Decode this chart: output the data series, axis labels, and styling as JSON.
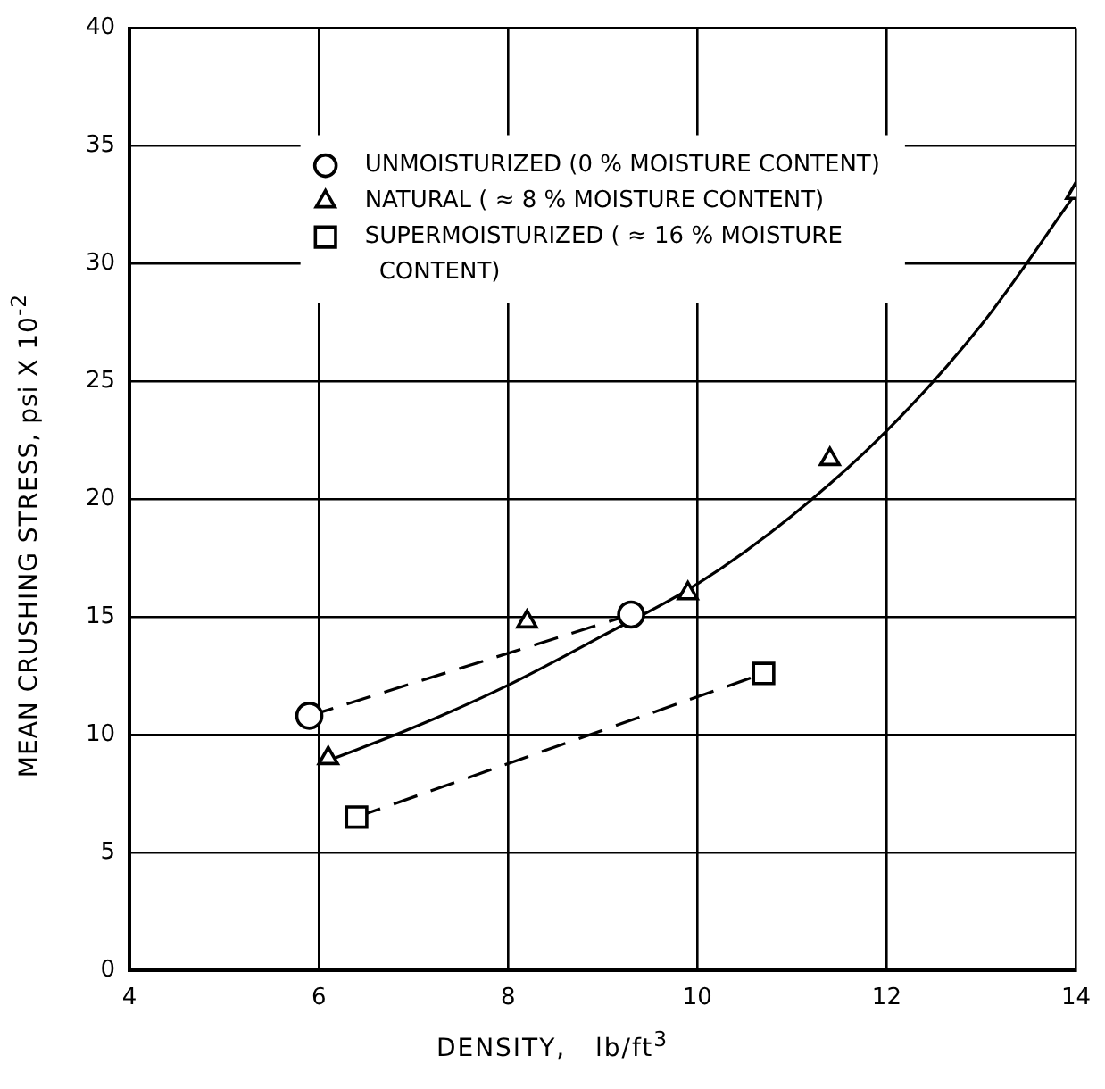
{
  "chart_data": {
    "type": "scatter",
    "xlabel": "DENSITY,   lb/ft$^{3}$",
    "ylabel": "MEAN CRUSHING STRESS, psi X 10$^{-2}$",
    "xlim": [
      4,
      14
    ],
    "xticks": [
      4,
      6,
      8,
      10,
      12,
      14
    ],
    "ylim": [
      0,
      40
    ],
    "yticks": [
      0,
      5,
      10,
      15,
      20,
      25,
      30,
      35,
      40
    ],
    "grid": true,
    "legend": "top",
    "series": [
      {
        "name": "UNMOISTURIZED (0 % MOISTURE CONTENT)",
        "type": "line",
        "color": "#000000",
        "marker": "circle",
        "line_style": "dashed",
        "x": [
          5.9,
          9.3
        ],
        "values": [
          10.8,
          15.1
        ]
      },
      {
        "name": "NATURAL ( ≈ 8 % MOISTURE CONTENT)",
        "type": "scatter",
        "color": "#000000",
        "marker": "triangle",
        "x": [
          6.1,
          8.2,
          9.9,
          11.4,
          14.0
        ],
        "values": [
          9.0,
          14.8,
          16.0,
          21.7,
          33.0
        ]
      },
      {
        "name": "SUPERMOISTURIZED ( ≈ 16 % MOISTURE CONTENT)",
        "type": "line",
        "color": "#000000",
        "marker": "square",
        "line_style": "dashed",
        "x": [
          6.4,
          10.7
        ],
        "values": [
          6.5,
          12.6
        ]
      },
      {
        "type": "line",
        "color": "#000000",
        "marker": "none",
        "line_style": "solid",
        "x": [
          6.1,
          7,
          8,
          9,
          10,
          11,
          12,
          13,
          14
        ],
        "values": [
          8.9,
          10.3,
          12.1,
          14.2,
          16.4,
          19.3,
          22.9,
          27.4,
          33.0
        ]
      }
    ]
  }
}
